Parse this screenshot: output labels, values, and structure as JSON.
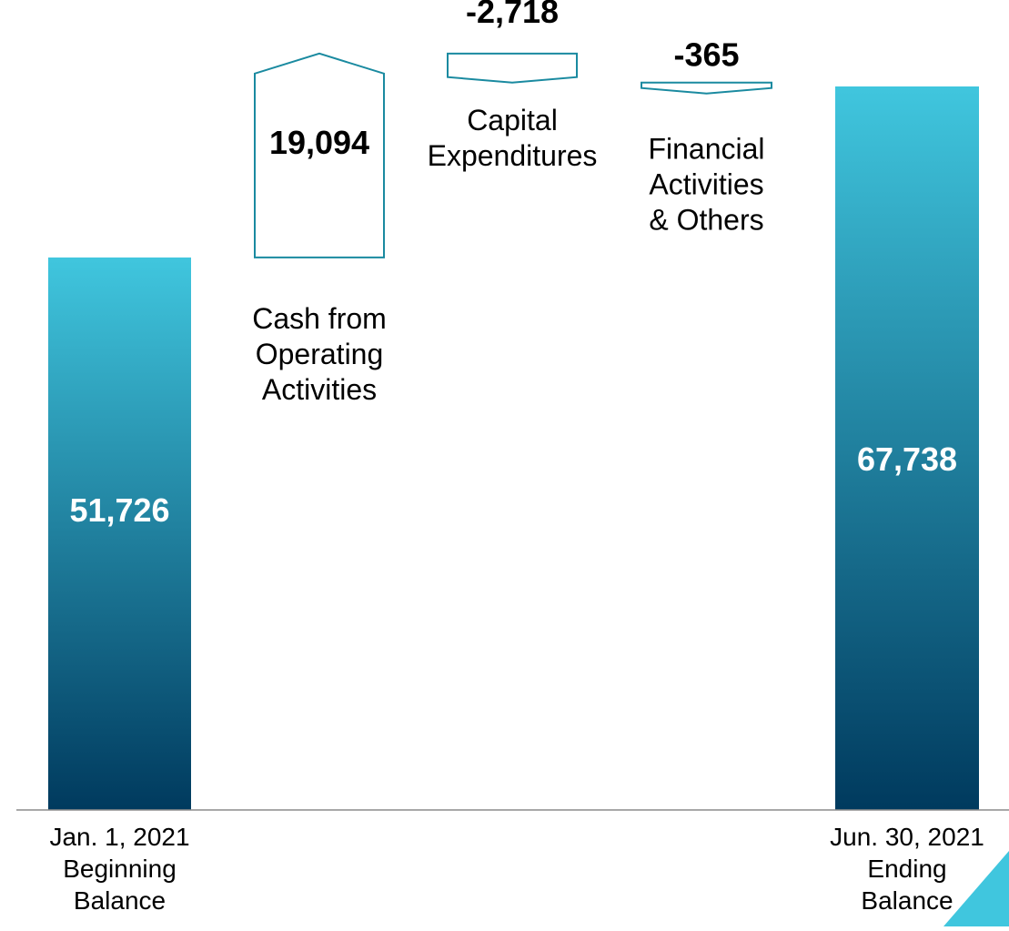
{
  "chart_data": {
    "type": "bar",
    "subtype": "waterfall",
    "categories": [
      "Jan. 1, 2021 Beginning Balance",
      "Cash from Operating Activities",
      "Capital Expenditures",
      "Financial Activities & Others",
      "Jun. 30, 2021 Ending Balance"
    ],
    "values": [
      51726,
      19094,
      -2718,
      -365,
      67738
    ],
    "value_labels": [
      "51,726",
      "19,094",
      "-2,718",
      "-365",
      "67,738"
    ],
    "category_label_lines": [
      [
        "Jan. 1, 2021",
        "Beginning",
        "Balance"
      ],
      [
        "Cash from",
        "Operating",
        "Activities"
      ],
      [
        "Capital",
        "Expenditures"
      ],
      [
        "Financial",
        "Activities",
        "& Others"
      ],
      [
        "Jun. 30, 2021",
        "Ending",
        "Balance"
      ]
    ],
    "bar_kinds": [
      "total",
      "increase",
      "decrease",
      "decrease",
      "total"
    ],
    "ylim": [
      0,
      70000
    ],
    "grid": false,
    "legend": "none"
  },
  "colors": {
    "total_top": "#40c6de",
    "total_bottom": "#003a5e",
    "change_outline": "#1a8aa0",
    "axis": "#8c8c8c",
    "total_value_text": "#ffffff",
    "change_value_text": "#000000",
    "corner_accent": "#40c6de"
  }
}
